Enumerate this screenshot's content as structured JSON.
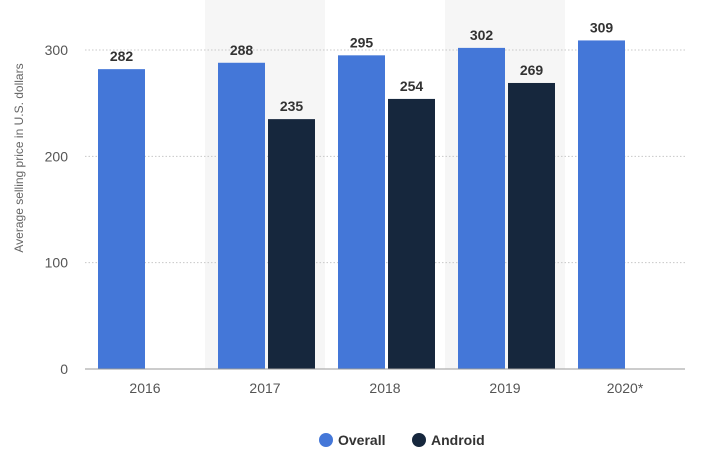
{
  "chart_data": {
    "type": "bar",
    "categories": [
      "2016",
      "2017",
      "2018",
      "2019",
      "2020*"
    ],
    "series": [
      {
        "name": "Overall",
        "values": [
          282,
          288,
          295,
          302,
          309
        ],
        "color": "#4477d8"
      },
      {
        "name": "Android",
        "values": [
          null,
          235,
          254,
          269,
          null
        ],
        "color": "#16273d"
      }
    ],
    "ylabel": "Average selling price in U.S. dollars",
    "xlabel": "",
    "yticks": [
      0,
      100,
      200,
      300
    ],
    "ylim": [
      0,
      330
    ],
    "grid": true,
    "legend_position": "bottom-center",
    "shaded_categories": [
      "2017",
      "2019"
    ],
    "colors": {
      "grid": "#c8c8c8",
      "shade": "#f6f6f6",
      "axis_text": "#555555",
      "label_text": "#333333"
    }
  }
}
